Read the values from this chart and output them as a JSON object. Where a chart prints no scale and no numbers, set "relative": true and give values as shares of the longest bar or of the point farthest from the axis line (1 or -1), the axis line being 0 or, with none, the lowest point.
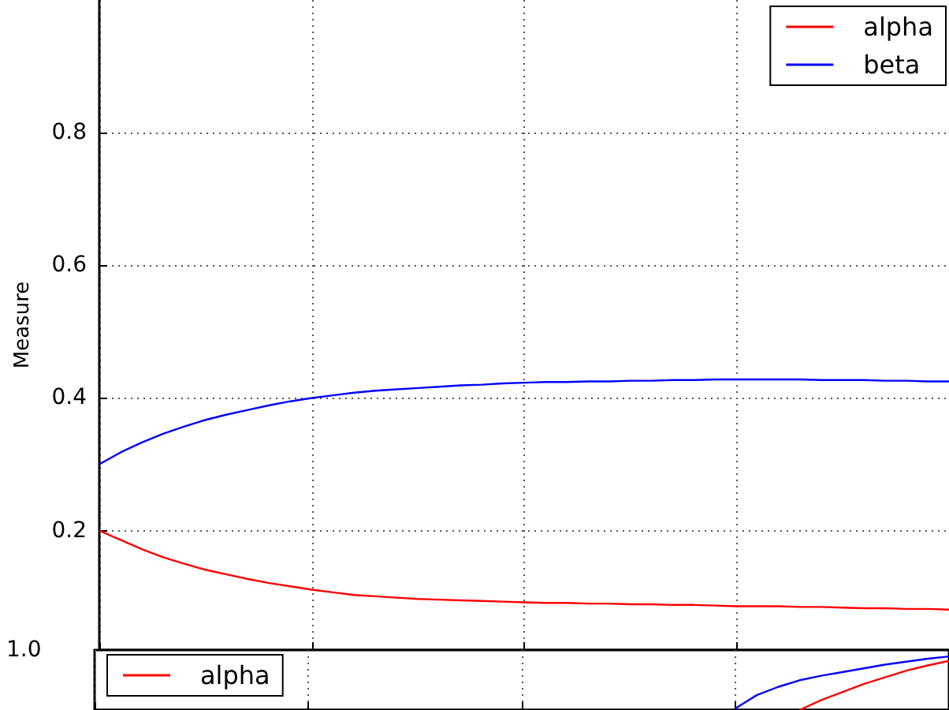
{
  "chart_data": [
    {
      "type": "line",
      "ylabel": "Measure",
      "categories": [
        null,
        null,
        null,
        null,
        null,
        null,
        null,
        null,
        null,
        null,
        null,
        null,
        null,
        null,
        null,
        null,
        null,
        null,
        null,
        null,
        null,
        null,
        null,
        null,
        null,
        null,
        null,
        null,
        null,
        null,
        null,
        null,
        null,
        null,
        null,
        null,
        null,
        null,
        null,
        null,
        null
      ],
      "series": [
        {
          "name": "alpha",
          "color": "#ff0000",
          "values": [
            0.2,
            0.186,
            0.172,
            0.16,
            0.15,
            0.141,
            0.134,
            0.127,
            0.121,
            0.116,
            0.111,
            0.107,
            0.103,
            0.101,
            0.099,
            0.097,
            0.096,
            0.095,
            0.094,
            0.093,
            0.092,
            0.091,
            0.091,
            0.09,
            0.09,
            0.089,
            0.089,
            0.088,
            0.088,
            0.087,
            0.086,
            0.086,
            0.086,
            0.085,
            0.085,
            0.084,
            0.083,
            0.083,
            0.082,
            0.082,
            0.081
          ]
        },
        {
          "name": "beta",
          "color": "#0000ff",
          "values": [
            0.3,
            0.318,
            0.333,
            0.346,
            0.357,
            0.367,
            0.375,
            0.382,
            0.389,
            0.395,
            0.4,
            0.404,
            0.408,
            0.411,
            0.413,
            0.415,
            0.417,
            0.419,
            0.42,
            0.422,
            0.423,
            0.424,
            0.424,
            0.425,
            0.425,
            0.426,
            0.426,
            0.427,
            0.427,
            0.428,
            0.428,
            0.428,
            0.428,
            0.428,
            0.427,
            0.427,
            0.427,
            0.426,
            0.426,
            0.425,
            0.425
          ]
        }
      ],
      "ylim": [
        0.02,
        1.0
      ],
      "yticks": [
        0.2,
        0.4,
        0.6,
        0.8
      ],
      "grid": true,
      "legend": "top right",
      "tick_labels": "y",
      "marker": "none"
    },
    {
      "type": "line",
      "categories": [
        null,
        null,
        null,
        null,
        null,
        null,
        null,
        null,
        null,
        null,
        null,
        null,
        null,
        null,
        null,
        null,
        null,
        null,
        null,
        null,
        null,
        null,
        null,
        null,
        null,
        null,
        null,
        null,
        null,
        null,
        null,
        null,
        null,
        null,
        null,
        null,
        null,
        null,
        null,
        null,
        null
      ],
      "series": [
        {
          "name": "alpha",
          "color": "#ff0000",
          "values": [
            null,
            null,
            null,
            null,
            null,
            null,
            null,
            null,
            null,
            null,
            null,
            null,
            null,
            null,
            null,
            null,
            null,
            null,
            null,
            null,
            null,
            null,
            null,
            null,
            null,
            null,
            null,
            null,
            null,
            null,
            null,
            null,
            null,
            0,
            0.181,
            0.333,
            0.486,
            0.611,
            0.736,
            0.833,
            0.917
          ]
        },
        {
          "color": "#0000ff",
          "values": [
            null,
            null,
            null,
            null,
            null,
            null,
            null,
            null,
            null,
            null,
            null,
            null,
            null,
            null,
            null,
            null,
            null,
            null,
            null,
            null,
            null,
            null,
            null,
            null,
            null,
            null,
            null,
            null,
            null,
            null,
            0.028,
            0.278,
            0.431,
            0.556,
            0.639,
            0.708,
            0.778,
            0.847,
            0.903,
            0.958,
            1.0
          ]
        }
      ],
      "relative": true,
      "annotations": [
        "1.0"
      ],
      "grid": "x",
      "legend": "top left",
      "tick_labels": false,
      "marker": "none"
    }
  ]
}
